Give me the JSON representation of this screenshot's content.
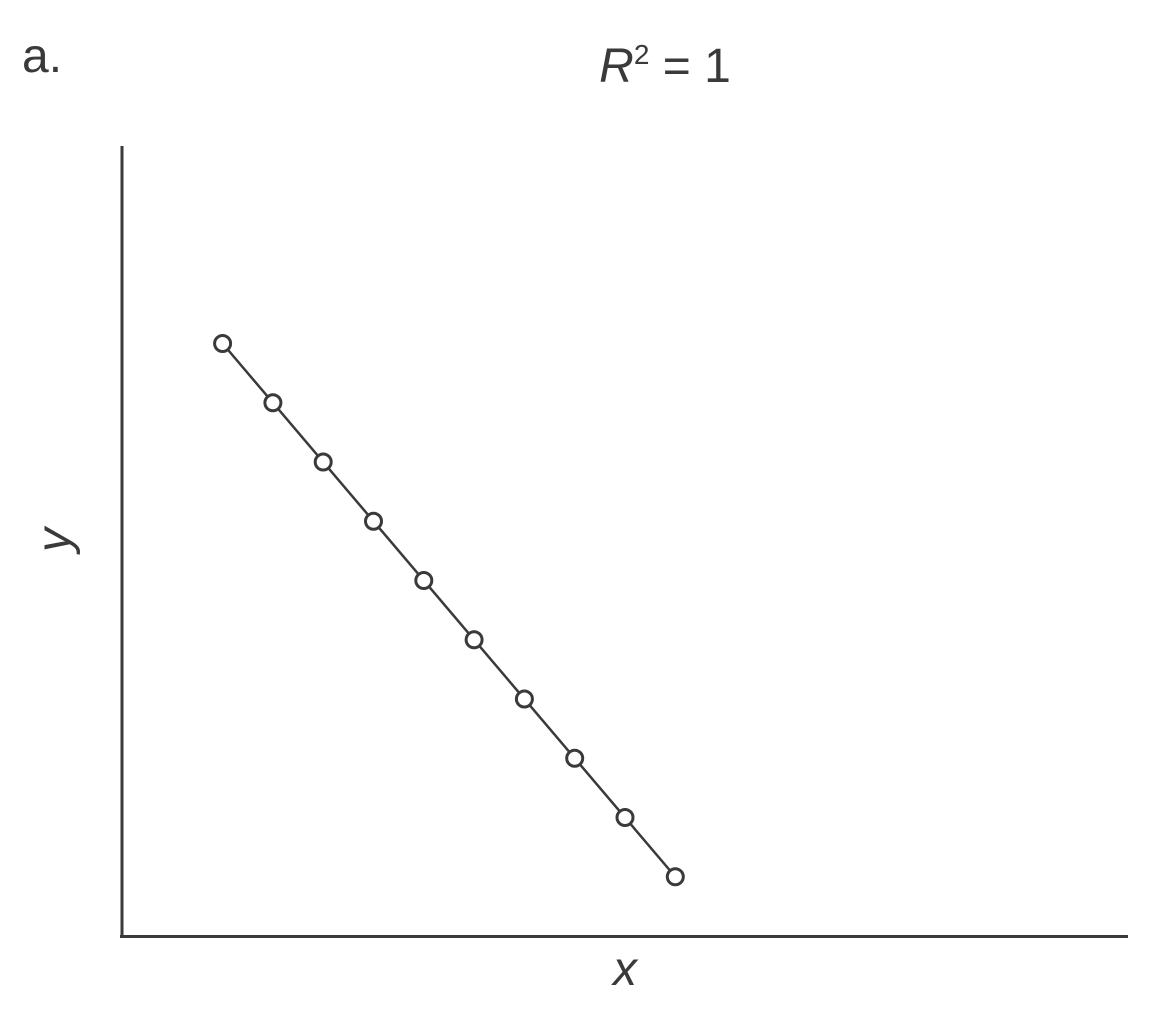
{
  "panel_label": "a.",
  "chart_data": {
    "type": "scatter",
    "title_var": "R",
    "title_sup": "2",
    "title_rest": " = 1",
    "xlabel": "x",
    "ylabel": "y",
    "xlim": [
      0,
      20
    ],
    "ylim": [
      0,
      10
    ],
    "series": [
      {
        "x": [
          2,
          3,
          4,
          5,
          6,
          7,
          8,
          9,
          10,
          11
        ],
        "y": [
          7.5,
          6.75,
          6.0,
          5.25,
          4.5,
          3.75,
          3.0,
          2.25,
          1.5,
          0.75
        ]
      }
    ],
    "fit_line": true,
    "grid": false,
    "marker": "open-circle",
    "colors": {
      "ink": "#3a3a3a",
      "background": "#ffffff"
    }
  }
}
